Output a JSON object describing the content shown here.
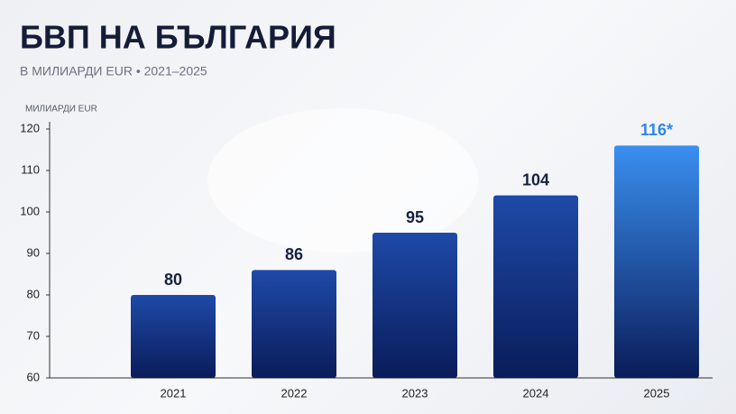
{
  "chart_data": {
    "type": "bar",
    "title": "БВП НА БЪЛГАРИЯ",
    "subtitle": "В МИЛИАРДИ EUR • 2021–2025",
    "y_axis_label": "МИЛИАРДИ EUR",
    "categories": [
      "2021",
      "2022",
      "2023",
      "2024",
      "2025"
    ],
    "values": [
      80,
      86,
      95,
      104,
      116
    ],
    "value_labels": [
      "80",
      "86",
      "95",
      "104",
      "116*"
    ],
    "colors": [
      "#1e4aa8",
      "#1e4aa8",
      "#1e4aa8",
      "#1e4aa8",
      "#3a8ff0"
    ],
    "value_label_colors": [
      "#16213f",
      "#16213f",
      "#16213f",
      "#16213f",
      "#2f86e8"
    ],
    "ylim": [
      60,
      120
    ],
    "yticks": [
      60,
      70,
      80,
      90,
      100,
      110,
      120
    ],
    "grid": false
  }
}
